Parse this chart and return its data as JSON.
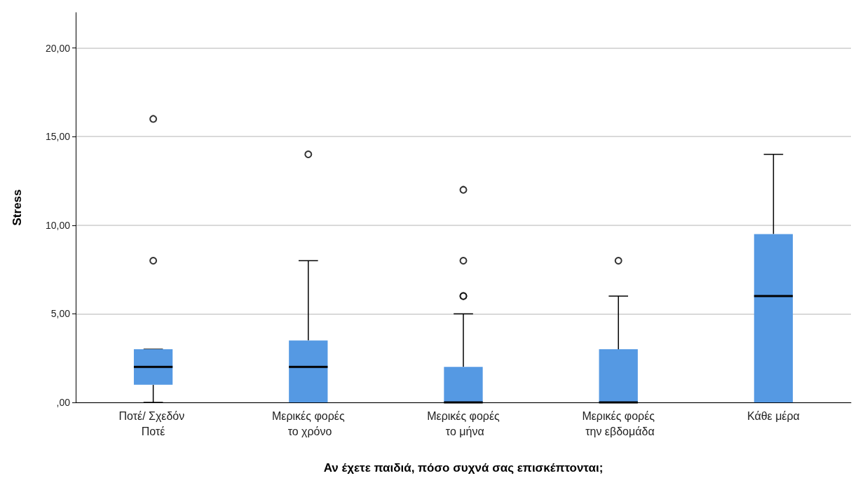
{
  "chart_data": {
    "type": "box",
    "xlabel": "Αν έχετε παιδιά, πόσο συχνά σας επισκέπτονται;",
    "ylabel": "Stress",
    "categories": [
      "Ποτέ/ Σχεδόν Ποτέ",
      "Μερικές φορές το χρόνο",
      "Μερικές φορές το μήνα",
      "Μερικές φορές την εβδομάδα",
      "Κάθε μέρα"
    ],
    "color": "#5599e3",
    "boxes": [
      {
        "low": 0,
        "q1": 1,
        "median": 2,
        "q3": 3,
        "high": 3,
        "outliers": [
          8,
          16
        ]
      },
      {
        "low": 0,
        "q1": 0,
        "median": 2,
        "q3": 3.5,
        "high": 8,
        "outliers": [
          14
        ]
      },
      {
        "low": 0,
        "q1": 0,
        "median": 0,
        "q3": 2,
        "high": 5,
        "outliers": [
          6,
          6,
          8,
          12
        ]
      },
      {
        "low": 0,
        "q1": 0,
        "median": 0,
        "q3": 3,
        "high": 6,
        "outliers": [
          8
        ]
      },
      {
        "low": 0,
        "q1": 0,
        "median": 6,
        "q3": 9.5,
        "high": 14
      }
    ],
    "ylim": [
      0,
      22
    ],
    "yticks": [
      {
        "value": 0,
        "label": ",00"
      },
      {
        "value": 5,
        "label": "5,00"
      },
      {
        "value": 10,
        "label": "10,00"
      },
      {
        "value": 15,
        "label": "15,00"
      },
      {
        "value": 20,
        "label": "20,00"
      }
    ],
    "grid": "y"
  }
}
